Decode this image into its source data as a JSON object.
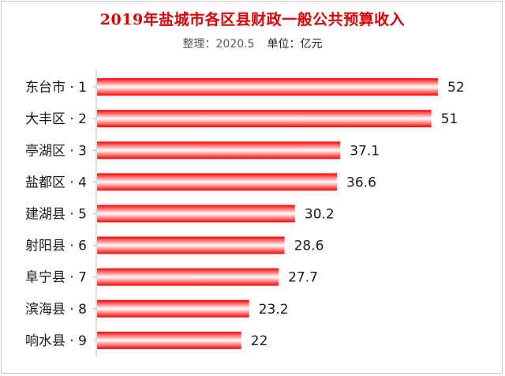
{
  "title": "2019年盐城市各区县财政一般公共预算收入",
  "subtitle": {
    "note": "整理：2020.5",
    "unit": "单位：亿元"
  },
  "colors": {
    "title": "#e00000",
    "bar_edge": "#ff0000",
    "bar_center": "#ffffff"
  },
  "chart_data": {
    "type": "bar",
    "orientation": "horizontal",
    "title": "2019年盐城市各区县财政一般公共预算收入",
    "categories": [
      "东台市 · 1",
      "大丰区 · 2",
      "亭湖区 · 3",
      "盐都区 · 4",
      "建湖县 · 5",
      "射阳县 · 6",
      "阜宁县 · 7",
      "滨海县 · 8",
      "响水县 · 9"
    ],
    "values": [
      52,
      51,
      37.1,
      36.6,
      30.2,
      28.6,
      27.7,
      23.2,
      22
    ],
    "value_labels": [
      "52",
      "51",
      "37.1",
      "36.6",
      "30.2",
      "28.6",
      "27.7",
      "23.2",
      "22"
    ],
    "xlim": [
      0,
      52
    ],
    "grid": false,
    "legend": "none",
    "data_labels": true
  }
}
